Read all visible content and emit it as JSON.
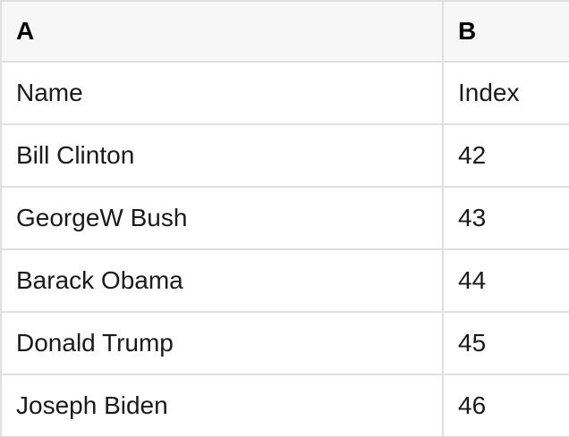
{
  "app": {
    "type": "spreadsheet-table-view"
  },
  "table": {
    "column_headers": [
      "A",
      "B"
    ],
    "field_labels": {
      "name_label": "Name",
      "index_label": "Index"
    },
    "rows": [
      {
        "A": "Name",
        "B": "Index"
      },
      {
        "A": "Bill Clinton",
        "B": "42"
      },
      {
        "A": "GeorgeW Bush",
        "B": "43"
      },
      {
        "A": "Barack Obama",
        "B": "44"
      },
      {
        "A": "Donald Trump",
        "B": "45"
      },
      {
        "A": "Joseph Biden",
        "B": "46"
      }
    ]
  },
  "colors": {
    "header_background": "#f7f7f7",
    "row_background": "#ffffff",
    "border": "#e0e0e0",
    "header_text": "#000000",
    "cell_text": "#1a1a1a"
  }
}
